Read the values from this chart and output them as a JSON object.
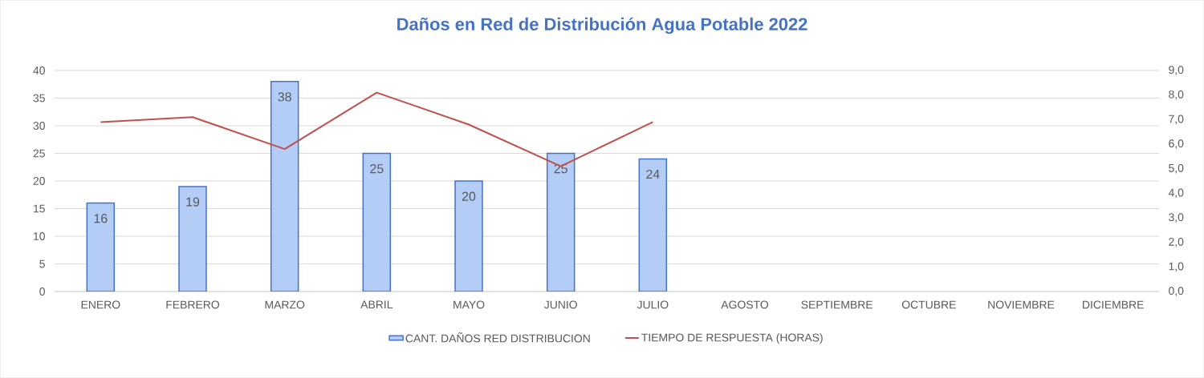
{
  "chart_data": {
    "type": "bar",
    "title": "Daños en Red de Distribución Agua Potable 2022",
    "categories": [
      "ENERO",
      "FEBRERO",
      "MARZO",
      "ABRIL",
      "MAYO",
      "JUNIO",
      "JULIO",
      "AGOSTO",
      "SEPTIEMBRE",
      "OCTUBRE",
      "NOVIEMBRE",
      "DICIEMBRE"
    ],
    "series": [
      {
        "name": "CANT. DAÑOS RED DISTRIBUCION",
        "color": "#b4cdf6",
        "values": [
          16,
          19,
          38,
          25,
          20,
          25,
          24,
          null,
          null,
          null,
          null,
          null
        ],
        "value_labels": [
          "16",
          "19",
          "38",
          "25",
          "20",
          "25",
          "24",
          null,
          null,
          null,
          null,
          null
        ]
      },
      {
        "name": "TIEMPO DE RESPUESTA (HORAS)",
        "type": "line",
        "axis": "y2",
        "color": "#c0504d",
        "values": [
          6.9,
          7.1,
          5.8,
          8.1,
          6.8,
          5.1,
          6.9,
          null,
          null,
          null,
          null,
          null
        ]
      }
    ],
    "ylim": [
      0,
      40
    ],
    "yticks": [
      0,
      5,
      10,
      15,
      20,
      25,
      30,
      35,
      40
    ],
    "y2lim": [
      0,
      9
    ],
    "y2ticks": [
      {
        "value": 0,
        "label": "0,0"
      },
      {
        "value": 1,
        "label": "1,0"
      },
      {
        "value": 2,
        "label": "2,0"
      },
      {
        "value": 3,
        "label": "3,0"
      },
      {
        "value": 4,
        "label": "4,0"
      },
      {
        "value": 5,
        "label": "5,0"
      },
      {
        "value": 6,
        "label": "6,0"
      },
      {
        "value": 7,
        "label": "7,0"
      },
      {
        "value": 8,
        "label": "8,0"
      },
      {
        "value": 9,
        "label": "9,0"
      }
    ],
    "grid": "y",
    "legend": "bottom"
  }
}
